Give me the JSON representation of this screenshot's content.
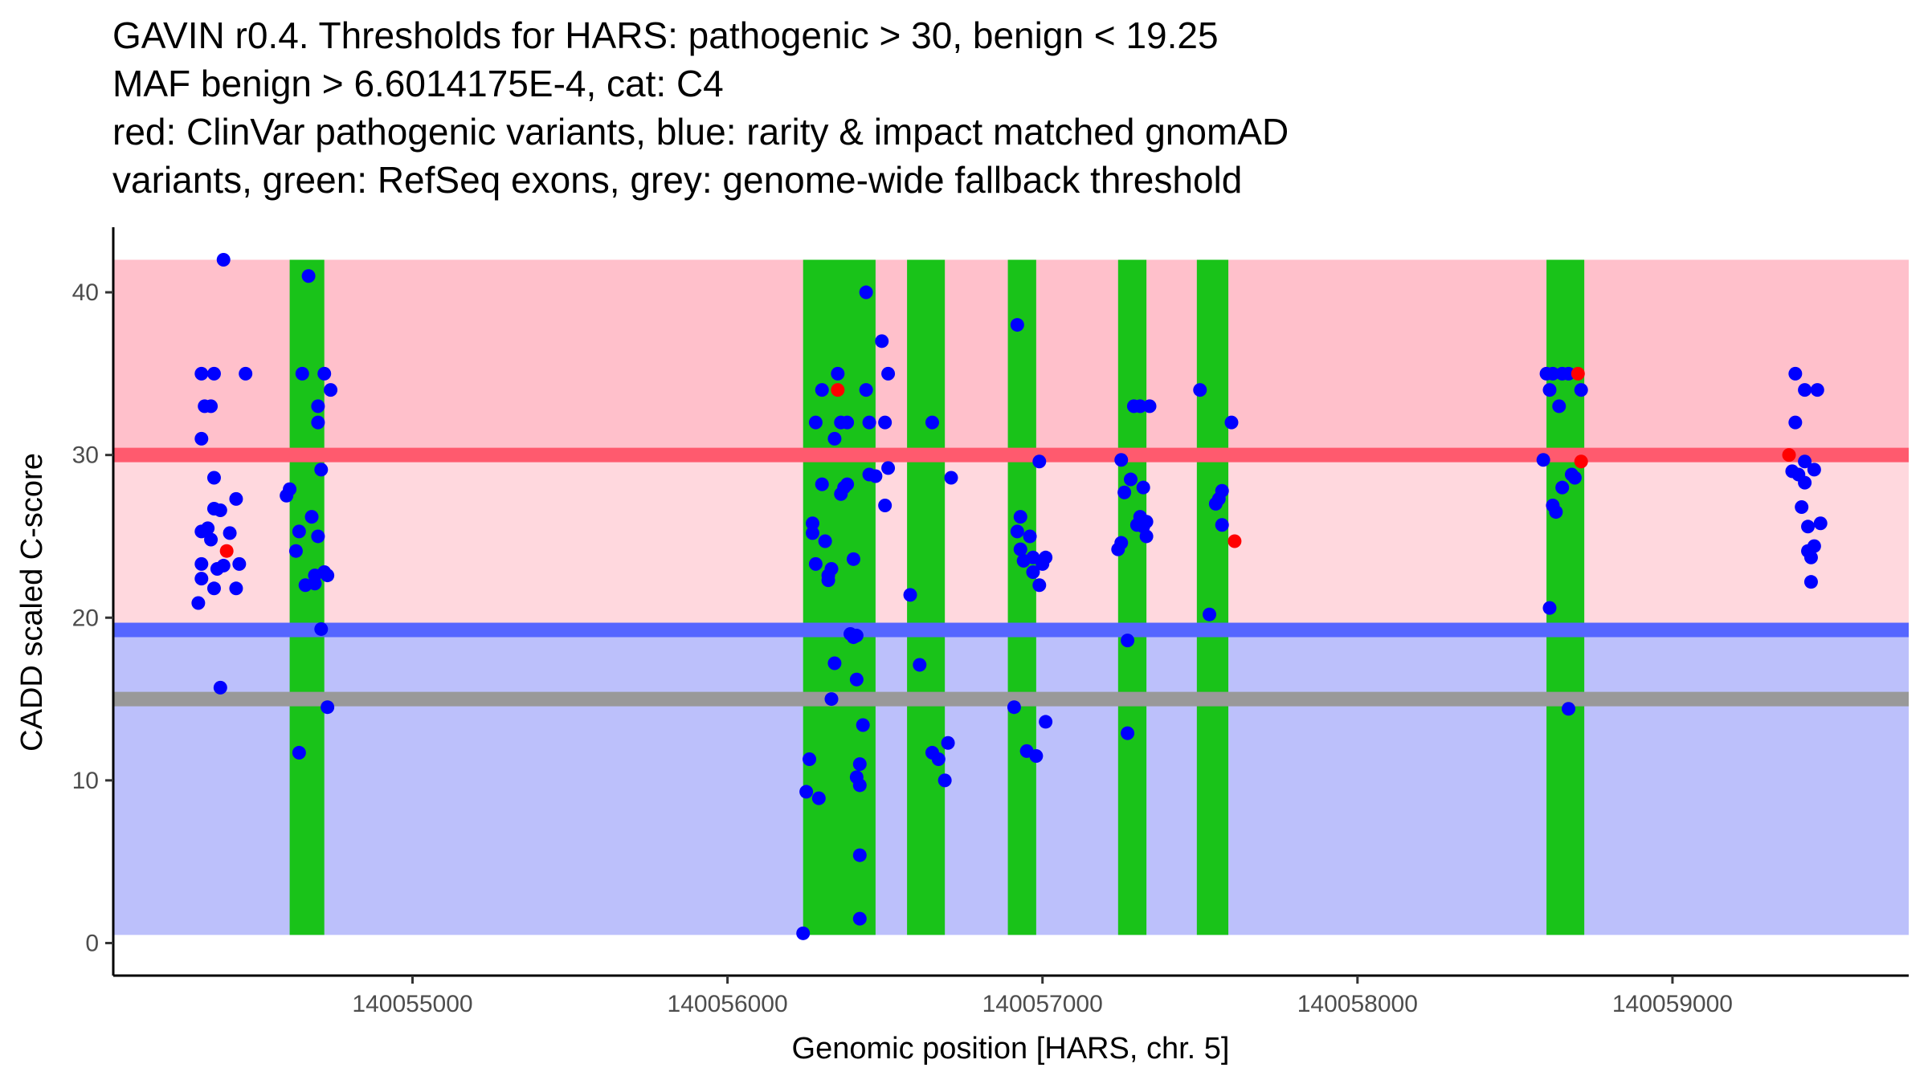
{
  "chart_data": {
    "type": "scatter",
    "title_lines": [
      "GAVIN r0.4. Thresholds for HARS: pathogenic > 30, benign < 19.25",
      "MAF benign > 6.6014175E-4, cat: C4",
      "red: ClinVar pathogenic variants, blue: rarity & impact matched gnomAD",
      "variants, green: RefSeq exons, grey: genome-wide fallback threshold"
    ],
    "xlabel": "Genomic position [HARS, chr. 5]",
    "ylabel": "CADD scaled C-score",
    "xlim": [
      140054050,
      140059750
    ],
    "ylim": [
      -2,
      44
    ],
    "x_ticks": [
      140055000,
      140056000,
      140057000,
      140058000,
      140059000
    ],
    "x_tick_labels": [
      "140055000",
      "140056000",
      "140057000",
      "140058000",
      "140059000"
    ],
    "y_ticks": [
      0,
      10,
      20,
      30,
      40
    ],
    "y_tick_labels": [
      "0",
      "10",
      "20",
      "30",
      "40"
    ],
    "regions": {
      "x_start": 140054050,
      "x_end": 140059750,
      "pathogenic_upper": [
        30,
        42
      ],
      "pathogenic_lower": [
        19.25,
        30
      ],
      "benign": [
        0.5,
        19.25
      ]
    },
    "thresholds": {
      "pathogenic": 30,
      "benign": 19.25,
      "fallback": 15
    },
    "exons": [
      [
        140054610,
        140054720
      ],
      [
        140056240,
        140056470
      ],
      [
        140056570,
        140056690
      ],
      [
        140056890,
        140056980
      ],
      [
        140057240,
        140057330
      ],
      [
        140057490,
        140057590
      ],
      [
        140058600,
        140058720
      ]
    ],
    "colors": {
      "pathogenic_upper": "#ffc0cb",
      "pathogenic_lower": "#ffd8de",
      "pathogenic_line": "#ff5a6e",
      "benign_area": "#bcc0fb",
      "benign_line": "#5566ff",
      "fallback_line": "#999999",
      "exon": "#19c319",
      "gnomad_point": "#0000ff",
      "clinvar_point": "#ff0000",
      "axis": "#000000"
    },
    "series": [
      {
        "name": "gnomAD",
        "points": [
          [
            140054330,
            35
          ],
          [
            140054370,
            35
          ],
          [
            140054340,
            33
          ],
          [
            140054360,
            33
          ],
          [
            140054330,
            31
          ],
          [
            140054370,
            28.6
          ],
          [
            140054370,
            26.7
          ],
          [
            140054390,
            26.6
          ],
          [
            140054330,
            25.3
          ],
          [
            140054350,
            25.5
          ],
          [
            140054360,
            24.8
          ],
          [
            140054330,
            23.3
          ],
          [
            140054380,
            23
          ],
          [
            140054400,
            23.2
          ],
          [
            140054330,
            22.4
          ],
          [
            140054370,
            21.8
          ],
          [
            140054320,
            20.9
          ],
          [
            140054390,
            15.7
          ],
          [
            140054400,
            42
          ],
          [
            140054470,
            35
          ],
          [
            140054420,
            25.2
          ],
          [
            140054440,
            27.3
          ],
          [
            140054440,
            21.8
          ],
          [
            140054450,
            23.3
          ],
          [
            140054600,
            27.5
          ],
          [
            140054610,
            27.9
          ],
          [
            140054630,
            24.1
          ],
          [
            140054640,
            25.3
          ],
          [
            140054650,
            35
          ],
          [
            140054670,
            41
          ],
          [
            140054660,
            22
          ],
          [
            140054680,
            26.2
          ],
          [
            140054690,
            22.1
          ],
          [
            140054700,
            25
          ],
          [
            140054700,
            33
          ],
          [
            140054700,
            32
          ],
          [
            140054710,
            29.1
          ],
          [
            140054690,
            22.6
          ],
          [
            140054710,
            19.3
          ],
          [
            140054720,
            22.8
          ],
          [
            140054720,
            35
          ],
          [
            140054740,
            34
          ],
          [
            140054730,
            22.6
          ],
          [
            140054730,
            14.5
          ],
          [
            140054640,
            11.7
          ],
          [
            140056250,
            9.3
          ],
          [
            140056260,
            11.3
          ],
          [
            140056240,
            0.6
          ],
          [
            140056270,
            25.8
          ],
          [
            140056270,
            25.2
          ],
          [
            140056280,
            23.3
          ],
          [
            140056290,
            8.9
          ],
          [
            140056300,
            34
          ],
          [
            140056280,
            32
          ],
          [
            140056300,
            28.2
          ],
          [
            140056310,
            24.7
          ],
          [
            140056320,
            22.3
          ],
          [
            140056320,
            22.6
          ],
          [
            140056330,
            23
          ],
          [
            140056340,
            17.2
          ],
          [
            140056330,
            15
          ],
          [
            140056340,
            31
          ],
          [
            140056350,
            35
          ],
          [
            140056360,
            32
          ],
          [
            140056360,
            27.6
          ],
          [
            140056370,
            28
          ],
          [
            140056380,
            28.2
          ],
          [
            140056380,
            32
          ],
          [
            140056390,
            19
          ],
          [
            140056400,
            18.8
          ],
          [
            140056400,
            23.6
          ],
          [
            140056410,
            18.9
          ],
          [
            140056410,
            16.2
          ],
          [
            140056420,
            11
          ],
          [
            140056410,
            10.2
          ],
          [
            140056420,
            9.7
          ],
          [
            140056420,
            5.4
          ],
          [
            140056420,
            1.5
          ],
          [
            140056430,
            13.4
          ],
          [
            140056440,
            34
          ],
          [
            140056440,
            40
          ],
          [
            140056450,
            32
          ],
          [
            140056450,
            28.8
          ],
          [
            140056470,
            28.7
          ],
          [
            140056490,
            37
          ],
          [
            140056500,
            26.9
          ],
          [
            140056510,
            29.2
          ],
          [
            140056510,
            35
          ],
          [
            140056500,
            32
          ],
          [
            140056580,
            21.4
          ],
          [
            140056610,
            17.1
          ],
          [
            140056650,
            32
          ],
          [
            140056650,
            11.7
          ],
          [
            140056670,
            11.3
          ],
          [
            140056690,
            10
          ],
          [
            140056700,
            12.3
          ],
          [
            140056710,
            28.6
          ],
          [
            140056910,
            14.5
          ],
          [
            140056920,
            38
          ],
          [
            140056920,
            25.3
          ],
          [
            140056930,
            26.2
          ],
          [
            140056930,
            24.2
          ],
          [
            140056940,
            23.5
          ],
          [
            140056950,
            11.8
          ],
          [
            140056960,
            25
          ],
          [
            140056970,
            23.7
          ],
          [
            140056970,
            22.8
          ],
          [
            140056980,
            11.5
          ],
          [
            140056990,
            22
          ],
          [
            140056990,
            29.6
          ],
          [
            140057000,
            23.3
          ],
          [
            140057010,
            23.7
          ],
          [
            140057010,
            13.6
          ],
          [
            140057240,
            24.2
          ],
          [
            140057250,
            24.6
          ],
          [
            140057250,
            29.7
          ],
          [
            140057260,
            27.7
          ],
          [
            140057270,
            18.6
          ],
          [
            140057270,
            12.9
          ],
          [
            140057280,
            28.5
          ],
          [
            140057290,
            33
          ],
          [
            140057300,
            25.7
          ],
          [
            140057310,
            26.2
          ],
          [
            140057310,
            33
          ],
          [
            140057320,
            25.6
          ],
          [
            140057320,
            28
          ],
          [
            140057330,
            25
          ],
          [
            140057330,
            25.9
          ],
          [
            140057340,
            33
          ],
          [
            140057500,
            34
          ],
          [
            140057530,
            20.2
          ],
          [
            140057550,
            27
          ],
          [
            140057560,
            27.3
          ],
          [
            140057570,
            27.8
          ],
          [
            140057570,
            25.7
          ],
          [
            140057600,
            32
          ],
          [
            140058590,
            29.7
          ],
          [
            140058600,
            35
          ],
          [
            140058610,
            34
          ],
          [
            140058620,
            35
          ],
          [
            140058620,
            26.9
          ],
          [
            140058630,
            26.5
          ],
          [
            140058610,
            20.6
          ],
          [
            140058640,
            33
          ],
          [
            140058650,
            28
          ],
          [
            140058650,
            35
          ],
          [
            140058670,
            35
          ],
          [
            140058680,
            28.8
          ],
          [
            140058690,
            28.6
          ],
          [
            140058670,
            14.4
          ],
          [
            140058710,
            34
          ],
          [
            140059390,
            35
          ],
          [
            140059390,
            32
          ],
          [
            140059380,
            29
          ],
          [
            140059400,
            28.8
          ],
          [
            140059410,
            26.8
          ],
          [
            140059420,
            29.6
          ],
          [
            140059420,
            28.3
          ],
          [
            140059420,
            34
          ],
          [
            140059430,
            25.6
          ],
          [
            140059430,
            24.1
          ],
          [
            140059440,
            23.7
          ],
          [
            140059440,
            22.2
          ],
          [
            140059450,
            29.1
          ],
          [
            140059450,
            24.4
          ],
          [
            140059460,
            34
          ],
          [
            140059470,
            25.8
          ]
        ]
      },
      {
        "name": "ClinVar pathogenic",
        "points": [
          [
            140054410,
            24.1
          ],
          [
            140056350,
            34
          ],
          [
            140057610,
            24.7
          ],
          [
            140058700,
            35
          ],
          [
            140058710,
            29.6
          ],
          [
            140059370,
            30
          ]
        ]
      }
    ]
  }
}
